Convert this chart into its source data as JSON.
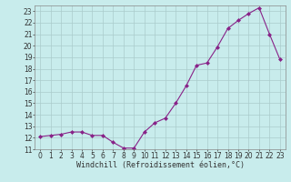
{
  "x": [
    0,
    1,
    2,
    3,
    4,
    5,
    6,
    7,
    8,
    9,
    10,
    11,
    12,
    13,
    14,
    15,
    16,
    17,
    18,
    19,
    20,
    21,
    22,
    23
  ],
  "y": [
    12.1,
    12.2,
    12.3,
    12.5,
    12.5,
    12.2,
    12.2,
    11.6,
    11.1,
    11.1,
    12.5,
    13.3,
    13.7,
    15.0,
    16.5,
    18.3,
    18.5,
    19.9,
    21.5,
    22.2,
    22.8,
    23.3,
    21.0,
    18.8
  ],
  "line_color": "#882288",
  "marker": "D",
  "marker_size": 2,
  "background_color": "#c8ecec",
  "grid_color": "#aacccc",
  "xlabel": "Windchill (Refroidissement éolien,°C)",
  "xlabel_fontsize": 6,
  "tick_fontsize": 5.5,
  "ylim": [
    11,
    23.5
  ],
  "xlim": [
    -0.5,
    23.5
  ],
  "yticks": [
    11,
    12,
    13,
    14,
    15,
    16,
    17,
    18,
    19,
    20,
    21,
    22,
    23
  ],
  "xticks": [
    0,
    1,
    2,
    3,
    4,
    5,
    6,
    7,
    8,
    9,
    10,
    11,
    12,
    13,
    14,
    15,
    16,
    17,
    18,
    19,
    20,
    21,
    22,
    23
  ]
}
